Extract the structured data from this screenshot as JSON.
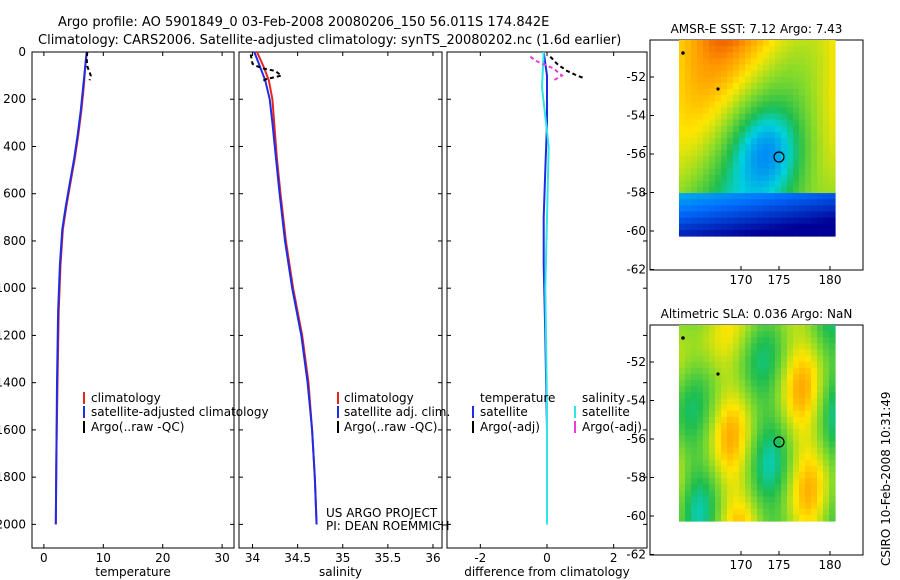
{
  "title_line1": "Argo profile: AO 5901849_0 03-Feb-2008 20080206_150 56.011S 174.842E",
  "title_line2": "Climatology: CARS2006. Satellite-adjusted climatology: synTS_20080202.nc (1.6d earlier)",
  "side_label": "CSIRO 10-Feb-2008 10:31:49",
  "project_line1": "US ARGO PROJECT",
  "project_line2": "PI: DEAN ROEMMICH",
  "colors": {
    "climatology": "#e8241c",
    "satellite": "#1e2ce6",
    "argo": "#000000",
    "sat_sal": "#2ee6e6",
    "argo_sal": "#e640d8"
  },
  "chart_data": [
    {
      "type": "line",
      "name": "temperature",
      "xlabel": "temperature",
      "xlim": [
        -2,
        32
      ],
      "ylim": [
        0,
        2100
      ],
      "xticks": [
        0,
        10,
        20,
        30
      ],
      "yticks": [
        0,
        200,
        400,
        600,
        800,
        1000,
        1200,
        1400,
        1600,
        1800,
        2000
      ],
      "legend": [
        "climatology",
        "satellite-adjusted climatology",
        "Argo(..raw -QC)"
      ],
      "series": [
        {
          "name": "climatology",
          "points": [
            [
              7.2,
              0
            ],
            [
              7.0,
              50
            ],
            [
              6.7,
              150
            ],
            [
              6.3,
              250
            ],
            [
              5.8,
              350
            ],
            [
              5.2,
              450
            ],
            [
              4.5,
              550
            ],
            [
              3.8,
              650
            ],
            [
              3.2,
              750
            ],
            [
              2.8,
              900
            ],
            [
              2.5,
              1100
            ],
            [
              2.3,
              1400
            ],
            [
              2.1,
              1700
            ],
            [
              2.0,
              2000
            ]
          ]
        },
        {
          "name": "satellite-adjusted climatology",
          "points": [
            [
              7.2,
              0
            ],
            [
              7.0,
              50
            ],
            [
              6.6,
              150
            ],
            [
              6.2,
              250
            ],
            [
              5.7,
              350
            ],
            [
              5.1,
              450
            ],
            [
              4.4,
              550
            ],
            [
              3.7,
              650
            ],
            [
              3.1,
              750
            ],
            [
              2.7,
              900
            ],
            [
              2.4,
              1100
            ],
            [
              2.2,
              1400
            ],
            [
              2.1,
              1700
            ],
            [
              2.0,
              2000
            ]
          ]
        },
        {
          "name": "Argo(..raw -QC)",
          "points": [
            [
              7.3,
              0
            ],
            [
              7.2,
              30
            ],
            [
              7.3,
              60
            ],
            [
              7.6,
              80
            ],
            [
              7.9,
              100
            ],
            [
              7.7,
              120
            ]
          ]
        }
      ]
    },
    {
      "type": "line",
      "name": "salinity",
      "xlabel": "salinity",
      "xlim": [
        33.85,
        36.1
      ],
      "ylim": [
        0,
        2100
      ],
      "xticks": [
        34,
        34.5,
        35,
        35.5,
        36
      ],
      "yticks": [
        0,
        200,
        400,
        600,
        800,
        1000,
        1200,
        1400,
        1600,
        1800,
        2000
      ],
      "legend": [
        "climatology",
        "satellite adj. clim.",
        "Argo(..raw -QC)"
      ],
      "series": [
        {
          "name": "climatology",
          "points": [
            [
              34.05,
              0
            ],
            [
              34.12,
              60
            ],
            [
              34.18,
              120
            ],
            [
              34.22,
              200
            ],
            [
              34.24,
              300
            ],
            [
              34.27,
              450
            ],
            [
              34.31,
              600
            ],
            [
              34.37,
              800
            ],
            [
              34.45,
              1000
            ],
            [
              34.55,
              1200
            ],
            [
              34.62,
              1400
            ],
            [
              34.66,
              1600
            ],
            [
              34.69,
              1800
            ],
            [
              34.71,
              2000
            ]
          ]
        },
        {
          "name": "satellite adj. clim.",
          "points": [
            [
              34.02,
              0
            ],
            [
              34.08,
              60
            ],
            [
              34.14,
              120
            ],
            [
              34.19,
              200
            ],
            [
              34.22,
              300
            ],
            [
              34.26,
              450
            ],
            [
              34.3,
              600
            ],
            [
              34.36,
              800
            ],
            [
              34.44,
              1000
            ],
            [
              34.54,
              1200
            ],
            [
              34.61,
              1400
            ],
            [
              34.66,
              1600
            ],
            [
              34.69,
              1800
            ],
            [
              34.71,
              2000
            ]
          ]
        },
        {
          "name": "Argo(..raw -QC)",
          "points": [
            [
              33.98,
              10
            ],
            [
              34.0,
              50
            ],
            [
              34.05,
              60
            ],
            [
              34.12,
              70
            ],
            [
              34.25,
              80
            ],
            [
              34.32,
              100
            ],
            [
              34.15,
              115
            ],
            [
              34.1,
              125
            ]
          ]
        }
      ]
    },
    {
      "type": "line",
      "name": "difference",
      "xlabel": "difference from climatology",
      "xlim": [
        -3,
        3
      ],
      "ylim": [
        0,
        2100
      ],
      "xticks": [
        -2,
        0,
        2
      ],
      "yticks": [
        0,
        200,
        400,
        600,
        800,
        1000,
        1200,
        1400,
        1600,
        1800,
        2000
      ],
      "legend": {
        "temperature": [
          "satellite",
          "Argo(-adj)"
        ],
        "salinity": [
          "satellite",
          "Argo(-adj)"
        ]
      },
      "legend_titles": [
        "temperature",
        "salinity"
      ],
      "series": [
        {
          "name": "temperature satellite",
          "points": [
            [
              -0.1,
              0
            ],
            [
              0.0,
              100
            ],
            [
              0.0,
              300
            ],
            [
              -0.05,
              500
            ],
            [
              -0.1,
              700
            ],
            [
              -0.1,
              900
            ],
            [
              -0.05,
              1200
            ],
            [
              0,
              1600
            ],
            [
              0,
              2000
            ]
          ]
        },
        {
          "name": "temperature Argo(-adj)",
          "points": [
            [
              0.1,
              20
            ],
            [
              0.3,
              50
            ],
            [
              0.6,
              80
            ],
            [
              0.9,
              100
            ],
            [
              1.1,
              110
            ]
          ]
        },
        {
          "name": "salinity satellite",
          "points": [
            [
              -0.1,
              0
            ],
            [
              -0.15,
              150
            ],
            [
              0.05,
              400
            ],
            [
              0.0,
              700
            ],
            [
              -0.05,
              1000
            ],
            [
              0.0,
              1500
            ],
            [
              0.0,
              2000
            ]
          ]
        },
        {
          "name": "salinity Argo(-adj)",
          "points": [
            [
              -0.5,
              20
            ],
            [
              -0.3,
              40
            ],
            [
              0.2,
              70
            ],
            [
              0.45,
              100
            ],
            [
              0.2,
              120
            ]
          ]
        }
      ]
    }
  ],
  "maps": [
    {
      "title": "AMSR-E SST: 7.12  Argo: 7.43",
      "xticks": [
        "170",
        "175",
        "180"
      ],
      "yticks": [
        "-52",
        "-54",
        "-56",
        "-58",
        "-60",
        "-62"
      ],
      "kind": "sst"
    },
    {
      "title": "Altimetric SLA: 0.036  Argo: NaN",
      "xticks": [
        "170",
        "175",
        "180"
      ],
      "yticks": [
        "-52",
        "-54",
        "-56",
        "-58",
        "-60",
        "-62"
      ],
      "kind": "sla"
    }
  ]
}
